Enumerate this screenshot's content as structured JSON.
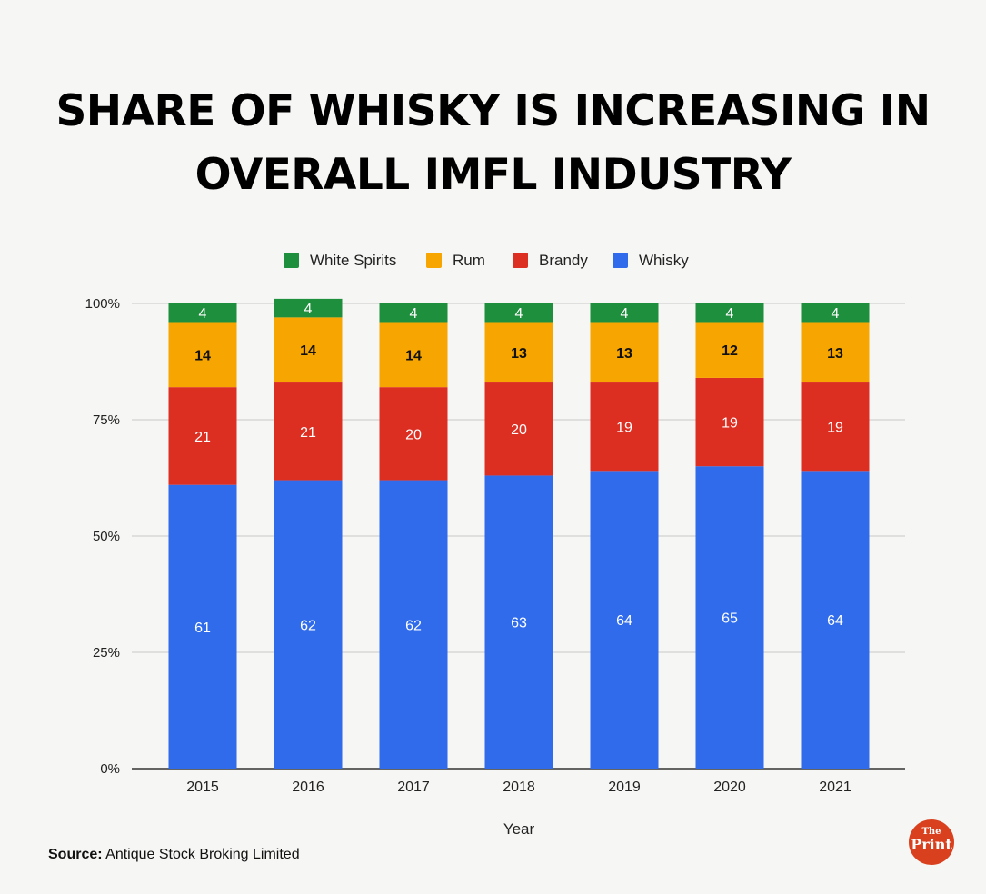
{
  "header": {
    "title_line1": "SHARE OF WHISKY IS INCREASING IN",
    "title_line2": "OVERALL IMFL INDUSTRY"
  },
  "footer": {
    "source_label": "Source:",
    "source_text": "Antique Stock Broking Limited",
    "logo_top": "The",
    "logo_bottom": "Print"
  },
  "chart_data": {
    "type": "bar",
    "stacked": true,
    "categories": [
      "2015",
      "2016",
      "2017",
      "2018",
      "2019",
      "2020",
      "2021"
    ],
    "series": [
      {
        "name": "Whisky",
        "color": "#2f6beb",
        "label_color": "#ffffff",
        "values": [
          61,
          62,
          62,
          63,
          64,
          65,
          64
        ]
      },
      {
        "name": "Brandy",
        "color": "#dd2e22",
        "label_color": "#ffffff",
        "values": [
          21,
          21,
          20,
          20,
          19,
          19,
          19
        ]
      },
      {
        "name": "Rum",
        "color": "#f7a500",
        "label_color": "#111111",
        "values": [
          14,
          14,
          14,
          13,
          13,
          12,
          13
        ]
      },
      {
        "name": "White Spirits",
        "color": "#1e8f3c",
        "label_color": "#ffffff",
        "values": [
          4,
          4,
          4,
          4,
          4,
          4,
          4
        ]
      }
    ],
    "legend_order": [
      "White Spirits",
      "Rum",
      "Brandy",
      "Whisky"
    ],
    "legend_position": "top",
    "xlabel": "Year",
    "ylabel": "",
    "ylim": [
      0,
      100
    ],
    "yticks": [
      {
        "value": 0,
        "label": "0%"
      },
      {
        "value": 25,
        "label": "25%"
      },
      {
        "value": 50,
        "label": "50%"
      },
      {
        "value": 75,
        "label": "75%"
      },
      {
        "value": 100,
        "label": "100%"
      }
    ],
    "grid": true
  }
}
